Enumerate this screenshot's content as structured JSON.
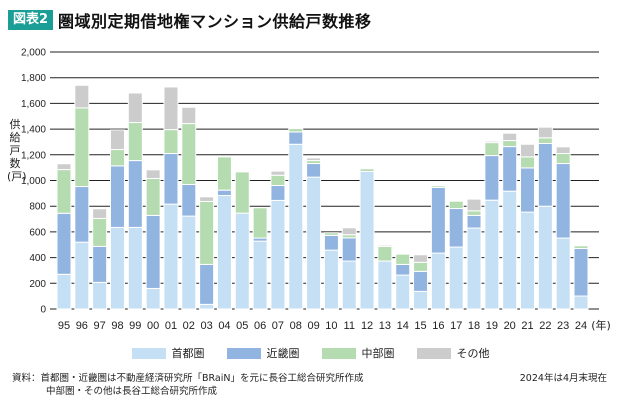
{
  "header": {
    "badge": "図表2",
    "title": "圏域別定期借地権マンション供給戸数推移"
  },
  "colors": {
    "shuto": "#c5e0f4",
    "kinki": "#92b4e0",
    "chubu": "#b5dcb0",
    "other": "#cccccc",
    "badge": "#1a9e96"
  },
  "chart_data": {
    "type": "bar",
    "stacked": true,
    "title": "圏域別定期借地権マンション供給戸数推移",
    "ylabel": "供給戸数(戸)",
    "xlabel": "(年)",
    "ylim": [
      0,
      2000
    ],
    "yticks": [
      "0",
      "200",
      "400",
      "600",
      "800",
      "1,000",
      "1,200",
      "1,400",
      "1,600",
      "1,800",
      "2,000"
    ],
    "grid": true,
    "legend_position": "bottom",
    "categories": [
      "95",
      "96",
      "97",
      "98",
      "99",
      "00",
      "01",
      "02",
      "03",
      "04",
      "05",
      "06",
      "07",
      "08",
      "09",
      "10",
      "11",
      "12",
      "13",
      "14",
      "15",
      "16",
      "17",
      "18",
      "19",
      "20",
      "21",
      "22",
      "23",
      "24"
    ],
    "series": [
      {
        "name": "首都圏",
        "key": "shuto",
        "values": [
          270,
          520,
          207,
          635,
          635,
          160,
          816,
          723,
          36,
          883,
          746,
          528,
          845,
          1282,
          1026,
          458,
          373,
          1070,
          373,
          264,
          137,
          435,
          482,
          630,
          847,
          917,
          754,
          800,
          552,
          101
        ]
      },
      {
        "name": "近畿圏",
        "key": "kinki",
        "values": [
          475,
          433,
          280,
          479,
          520,
          568,
          394,
          246,
          311,
          42,
          0,
          24,
          116,
          96,
          106,
          115,
          181,
          0,
          0,
          83,
          156,
          511,
          300,
          98,
          347,
          347,
          344,
          488,
          580,
          370
        ]
      },
      {
        "name": "中部圏",
        "key": "chubu",
        "values": [
          340,
          612,
          218,
          127,
          296,
          288,
          186,
          474,
          490,
          259,
          321,
          236,
          80,
          26,
          23,
          20,
          24,
          21,
          114,
          80,
          70,
          13,
          57,
          36,
          101,
          47,
          86,
          44,
          78,
          21
        ]
      },
      {
        "name": "その他",
        "key": "other",
        "values": [
          45,
          176,
          75,
          153,
          230,
          67,
          332,
          127,
          36,
          0,
          0,
          0,
          32,
          0,
          21,
          0,
          54,
          0,
          10,
          0,
          59,
          0,
          0,
          91,
          11,
          57,
          98,
          83,
          52,
          0
        ]
      }
    ]
  },
  "footer": {
    "source_line1": "資料：首都圏・近畿圏は不動産経済研究所「BRaiN」を元に長谷工総合研究所作成",
    "source_line2": "中部圏・その他は長谷工総合研究所作成",
    "note": "2024年は4月末現在"
  }
}
